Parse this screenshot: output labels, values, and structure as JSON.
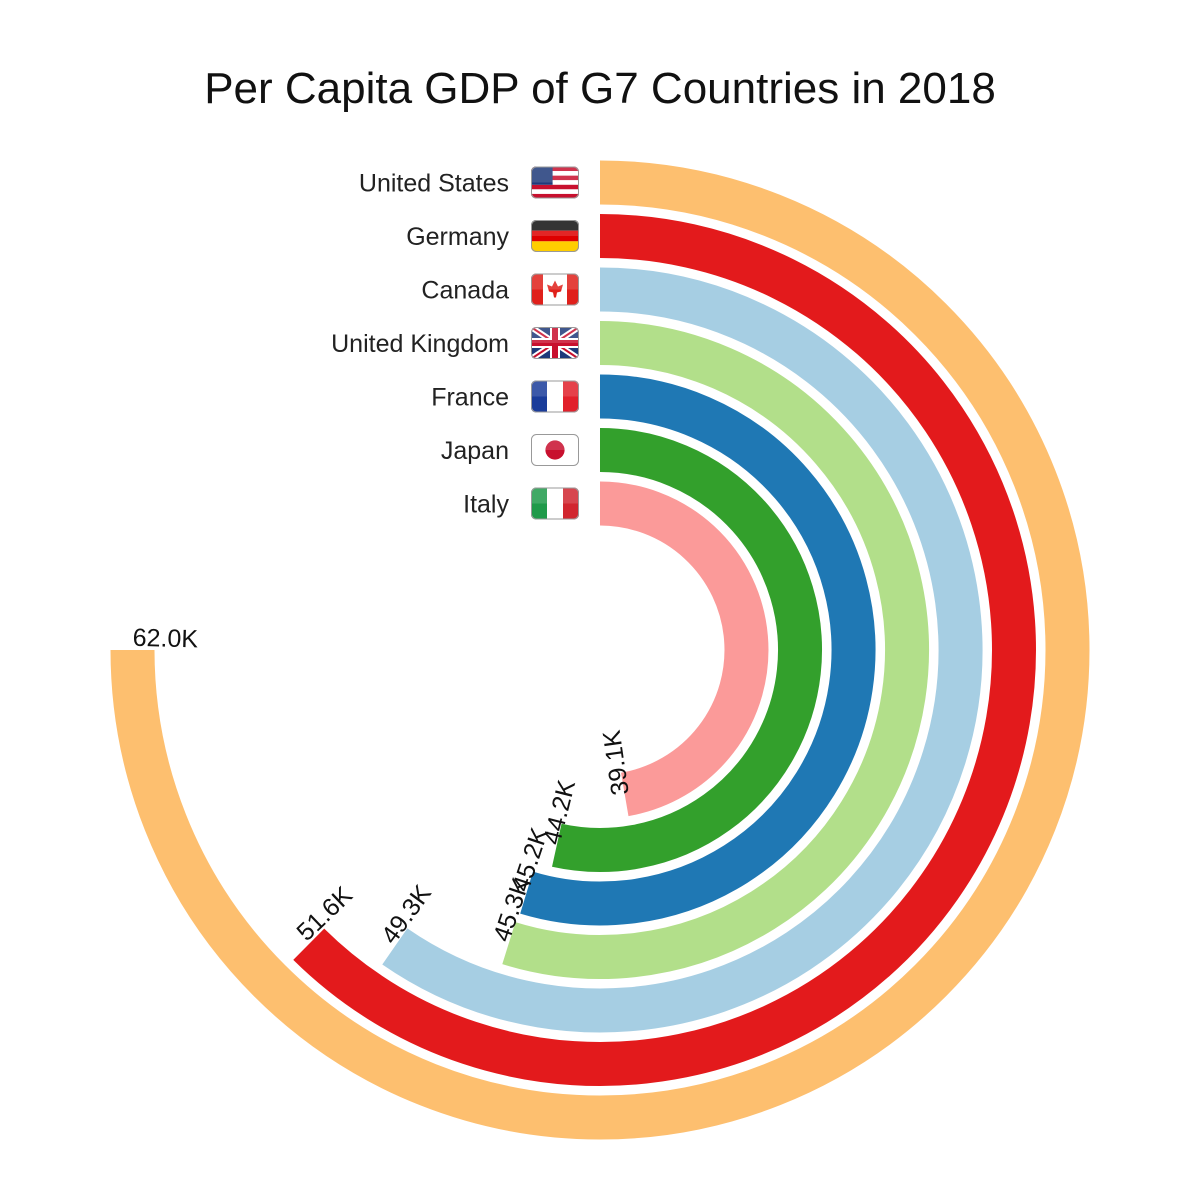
{
  "chart_data": {
    "type": "radial-bar",
    "title": "Per Capita GDP of G7 Countries in 2018",
    "max_value": 62.0,
    "series": [
      {
        "name": "United States",
        "value": 62.0,
        "label": "62.0K",
        "color": "#fdbf6f",
        "flag": "us-flag-icon"
      },
      {
        "name": "Germany",
        "value": 51.6,
        "label": "51.6K",
        "color": "#e31a1c",
        "flag": "germany-flag-icon"
      },
      {
        "name": "Canada",
        "value": 49.3,
        "label": "49.3K",
        "color": "#a6cee3",
        "flag": "canada-flag-icon"
      },
      {
        "name": "United Kingdom",
        "value": 45.3,
        "label": "45.3K",
        "color": "#b2df8a",
        "flag": "uk-flag-icon"
      },
      {
        "name": "France",
        "value": 45.2,
        "label": "45.2K",
        "color": "#1f78b4",
        "flag": "france-flag-icon"
      },
      {
        "name": "Japan",
        "value": 44.2,
        "label": "44.2K",
        "color": "#33a02c",
        "flag": "japan-flag-icon"
      },
      {
        "name": "Italy",
        "value": 39.1,
        "label": "39.1K",
        "color": "#fb9a99",
        "flag": "italy-flag-icon"
      }
    ]
  }
}
